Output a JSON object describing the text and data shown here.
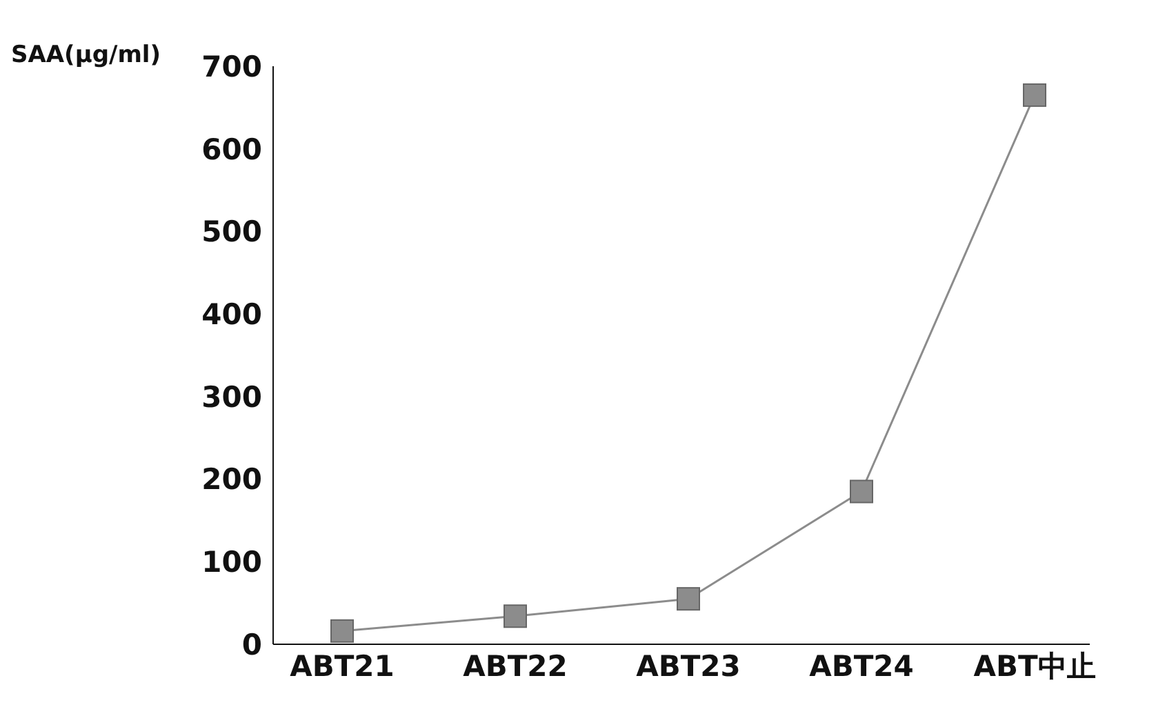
{
  "chart_data": {
    "type": "line",
    "ylabel": "SAA(μg/ml)",
    "categories": [
      "ABT21",
      "ABT22",
      "ABT23",
      "ABT24",
      "ABT中止"
    ],
    "series": [
      {
        "color": "#8c8c8c",
        "values": [
          16,
          34,
          55,
          185,
          665
        ]
      }
    ],
    "ylim": [
      0,
      700
    ],
    "yticks": [
      0,
      100,
      200,
      300,
      400,
      500,
      600,
      700
    ],
    "grid": false,
    "legend": false,
    "marker": "square",
    "line_style": "solid"
  }
}
